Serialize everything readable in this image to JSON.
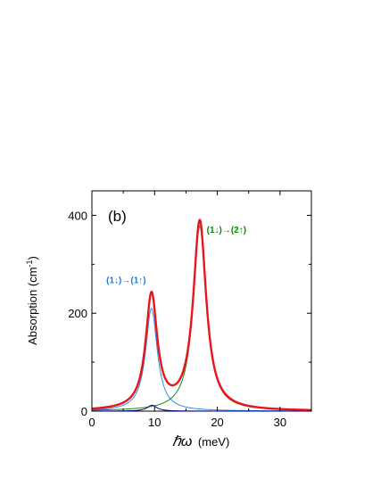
{
  "chart_data": {
    "type": "line",
    "panel_label": "(b)",
    "xlabel_symbol": "ℏω",
    "xlabel_unit": "(meV)",
    "ylabel": "Absorption (cm",
    "ylabel_sup": "-1",
    "ylabel_close": ")",
    "xlim": [
      0,
      35
    ],
    "ylim": [
      0,
      450
    ],
    "xticks": [
      0,
      10,
      20,
      30
    ],
    "yticks": [
      0,
      200,
      400
    ],
    "grid": false,
    "annotations": [
      {
        "text": "(1↓)→(1↑)",
        "color": "#1f7fd6",
        "x": 2.3,
        "y": 261
      },
      {
        "text": "(1↓)→(2↑)",
        "color": "#0a8a0a",
        "x": 18.3,
        "y": 364
      }
    ],
    "series": [
      {
        "role": "total",
        "color": "#e8161c",
        "x0": 9.5,
        "g0": 1.12,
        "a0": 222,
        "x1": 17.2,
        "g1": 1.25,
        "a1": 386,
        "x2": 9.6,
        "g2": 1.0,
        "a2": 12
      },
      {
        "role": "transition-1",
        "color": "#2a8fe0",
        "x0": 9.5,
        "g0": 1.12,
        "a0": 210
      },
      {
        "role": "transition-2",
        "color": "#1a8a1a",
        "x0": 17.2,
        "g0": 1.25,
        "a0": 378
      },
      {
        "role": "minor",
        "color": "#000080",
        "x0": 9.6,
        "g0": 0.95,
        "a0": 12
      }
    ]
  }
}
